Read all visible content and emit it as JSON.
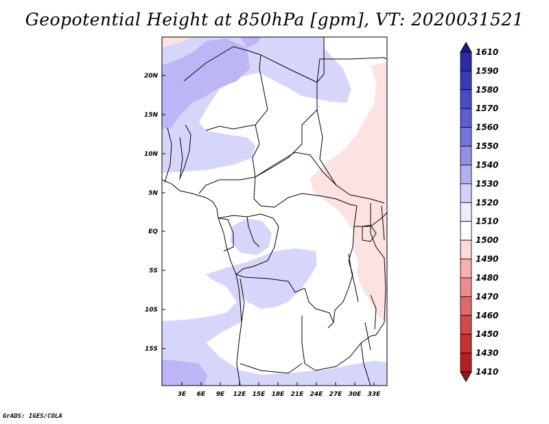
{
  "title": "Geopotential Height at 850hPa [gpm], VT: 2020031521",
  "credit": "GrADS: IGES/COLA",
  "map": {
    "lat_labels": [
      "20N",
      "15N",
      "10N",
      "5N",
      "EQ",
      "5S",
      "10S",
      "15S"
    ],
    "lon_labels": [
      "3E",
      "6E",
      "9E",
      "12E",
      "15E",
      "18E",
      "21E",
      "24E",
      "27E",
      "30E",
      "33E"
    ]
  },
  "colorbar": {
    "levels": [
      "1610",
      "1590",
      "1580",
      "1570",
      "1560",
      "1550",
      "1540",
      "1530",
      "1520",
      "1510",
      "1500",
      "1490",
      "1480",
      "1470",
      "1460",
      "1450",
      "1430",
      "1410"
    ],
    "colors": [
      "#1a1a8c",
      "#2a2aa6",
      "#3a3ab8",
      "#4a4ac6",
      "#5e5ed2",
      "#7474dc",
      "#9090e6",
      "#b0b0f0",
      "#d2d2f8",
      "#eeeeff",
      "#ffffff",
      "#ffd8d8",
      "#f6b0b0",
      "#ec8c8c",
      "#e06a6a",
      "#d64848",
      "#c83030",
      "#b42020",
      "#9a1616"
    ]
  },
  "colors": {
    "light_blue": "#d6d6fa",
    "mid_blue": "#bcb6f6",
    "light_pink": "#fde2e2",
    "border": "#000000"
  }
}
